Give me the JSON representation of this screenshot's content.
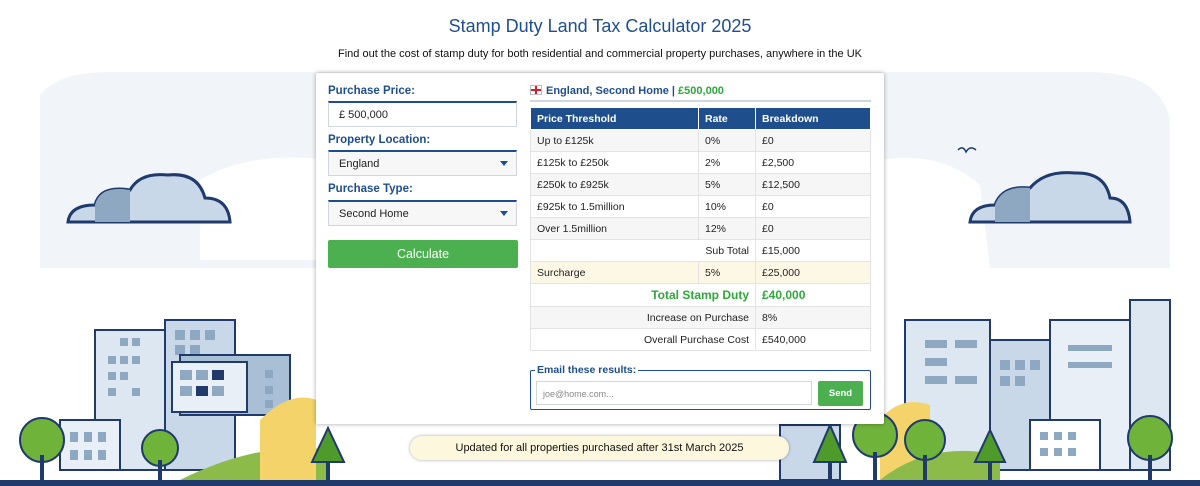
{
  "page": {
    "title": "Stamp Duty Land Tax Calculator 2025",
    "subtitle": "Find out the cost of stamp duty for both residential and commercial property purchases, anywhere in the UK",
    "notice": "Updated for all properties purchased after 31st March 2025"
  },
  "form": {
    "price_label": "Purchase Price:",
    "price_value": "£ 500,000",
    "location_label": "Property Location:",
    "location_value": "England",
    "type_label": "Purchase Type:",
    "type_value": "Second Home",
    "calculate_label": "Calculate"
  },
  "results": {
    "heading": "England, Second Home | ",
    "heading_price": "£500,000",
    "columns": [
      "Price Threshold",
      "Rate",
      "Breakdown"
    ],
    "rows": [
      {
        "threshold": "Up to £125k",
        "rate": "0%",
        "breakdown": "£0"
      },
      {
        "threshold": "£125k to £250k",
        "rate": "2%",
        "breakdown": "£2,500"
      },
      {
        "threshold": "£250k to £925k",
        "rate": "5%",
        "breakdown": "£12,500"
      },
      {
        "threshold": "£925k to 1.5million",
        "rate": "10%",
        "breakdown": "£0"
      },
      {
        "threshold": "Over 1.5million",
        "rate": "12%",
        "breakdown": "£0"
      }
    ],
    "subtotal_label": "Sub Total",
    "subtotal_value": "£15,000",
    "surcharge_label": "Surcharge",
    "surcharge_rate": "5%",
    "surcharge_value": "£25,000",
    "total_label": "Total Stamp Duty",
    "total_value": "£40,000",
    "increase_label": "Increase on Purchase",
    "increase_value": "8%",
    "overall_label": "Overall Purchase Cost",
    "overall_value": "£540,000"
  },
  "email": {
    "legend": "Email these results:",
    "placeholder": "joe@home.com...",
    "send_label": "Send"
  },
  "colors": {
    "brand_blue": "#1f4e8c",
    "button_green": "#4caf50",
    "total_green": "#2ea83a",
    "surcharge_row": "#fdf8e6",
    "notice_bg": "#fdf7de"
  }
}
